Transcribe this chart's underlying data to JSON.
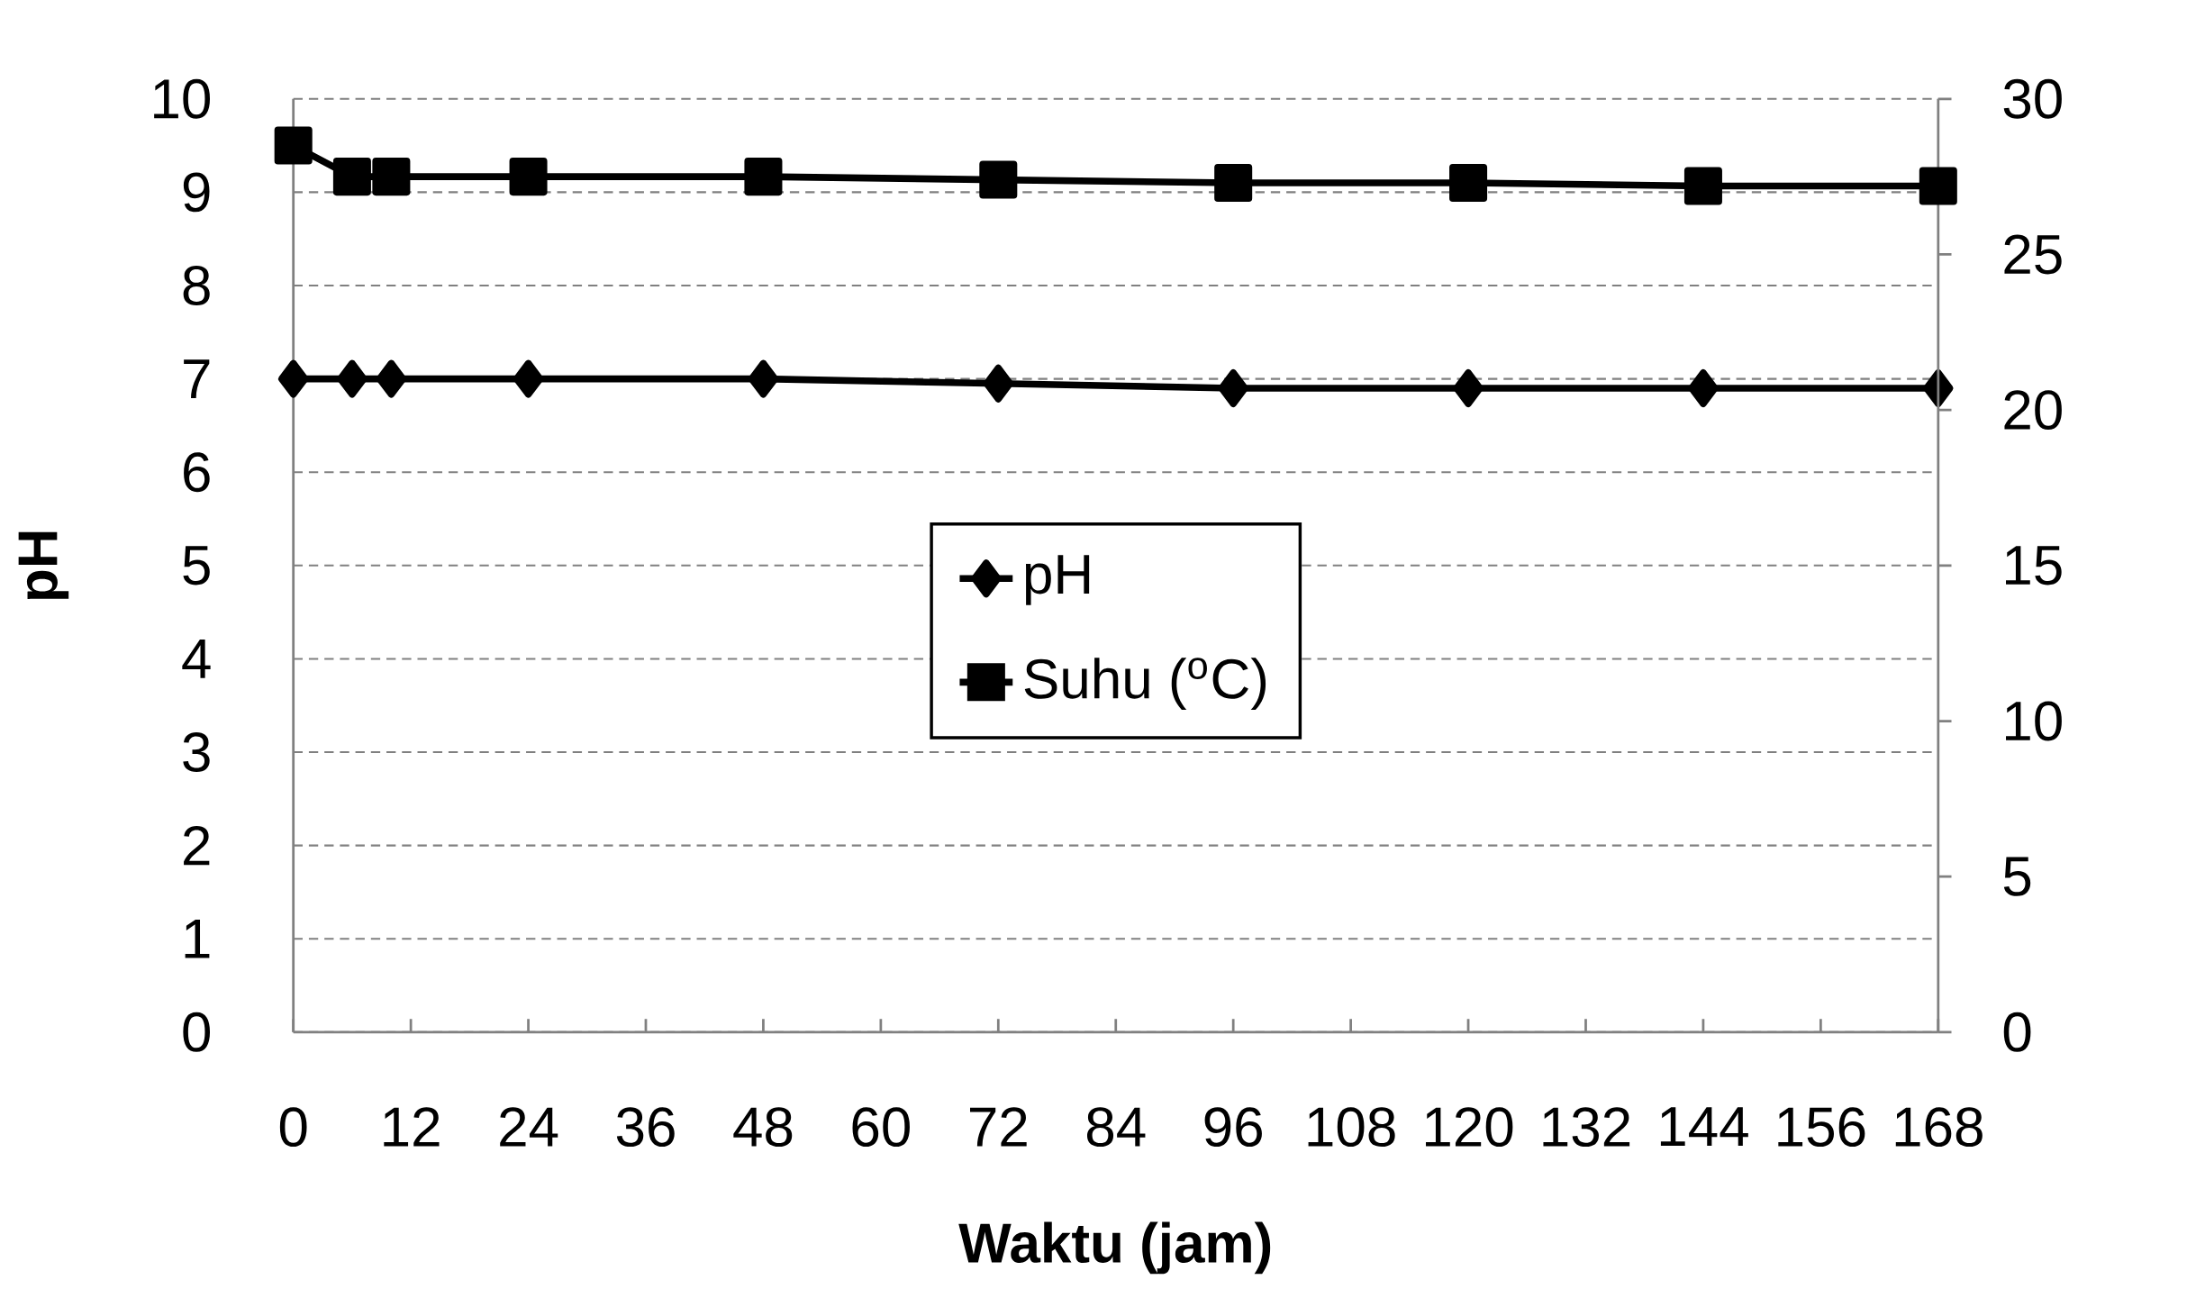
{
  "chart_data": {
    "type": "line",
    "xlabel": "Waktu (jam)",
    "ylabel": "pH",
    "x": [
      0,
      6,
      10,
      24,
      48,
      72,
      96,
      120,
      144,
      168
    ],
    "xlim": [
      0,
      168
    ],
    "xticks": [
      0,
      12,
      24,
      36,
      48,
      60,
      72,
      84,
      96,
      108,
      120,
      132,
      144,
      156,
      168
    ],
    "ylim": [
      0,
      10
    ],
    "yticks": [
      0,
      1,
      2,
      3,
      4,
      5,
      6,
      7,
      8,
      9,
      10
    ],
    "y2lim": [
      0,
      30
    ],
    "y2ticks": [
      0,
      5,
      10,
      15,
      20,
      25,
      30
    ],
    "grid": "y",
    "legend": "center",
    "line_style": "solid",
    "series": [
      {
        "name": "pH",
        "color": "#000000",
        "marker": "diamond",
        "values": [
          7.0,
          7.0,
          7.0,
          7.0,
          7.0,
          6.95,
          6.9,
          6.9,
          6.9,
          6.9
        ]
      },
      {
        "name": "Suhu ($^{o}$C)",
        "color": "#000000",
        "marker": "square",
        "axis": "y2",
        "values": [
          28.5,
          27.5,
          27.5,
          27.5,
          27.5,
          27.4,
          27.3,
          27.3,
          27.2,
          27.2
        ]
      }
    ]
  }
}
